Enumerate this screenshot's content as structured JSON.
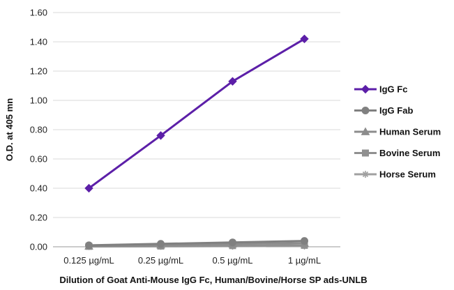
{
  "chart_data": {
    "type": "line",
    "title": "",
    "xlabel": "Dilution of Goat Anti-Mouse IgG Fc, Human/Bovine/Horse SP ads-UNLB",
    "ylabel": "O.D. at 405 mn",
    "categories": [
      "0.125 µg/mL",
      "0.25 µg/mL",
      "0.5 µg/mL",
      "1 µg/mL"
    ],
    "ylim": [
      0,
      1.6
    ],
    "y_ticks": [
      "0.00",
      "0.20",
      "0.40",
      "0.60",
      "0.80",
      "1.00",
      "1.20",
      "1.40",
      "1.60"
    ],
    "grid": true,
    "legend_position": "right",
    "series": [
      {
        "name": "IgG Fc",
        "values": [
          0.4,
          0.76,
          1.13,
          1.42
        ],
        "color": "#5c1fa8",
        "marker": "diamond"
      },
      {
        "name": "IgG Fab",
        "values": [
          0.01,
          0.02,
          0.03,
          0.04
        ],
        "color": "#808080",
        "marker": "circle"
      },
      {
        "name": "Human Serum",
        "values": [
          0.005,
          0.012,
          0.02,
          0.025
        ],
        "color": "#8c8c8c",
        "marker": "triangle"
      },
      {
        "name": "Bovine Serum",
        "values": [
          0.003,
          0.005,
          0.008,
          0.01
        ],
        "color": "#909090",
        "marker": "square"
      },
      {
        "name": "Horse Serum",
        "values": [
          0.002,
          0.003,
          0.004,
          0.005
        ],
        "color": "#a0a0a0",
        "marker": "star"
      }
    ]
  }
}
